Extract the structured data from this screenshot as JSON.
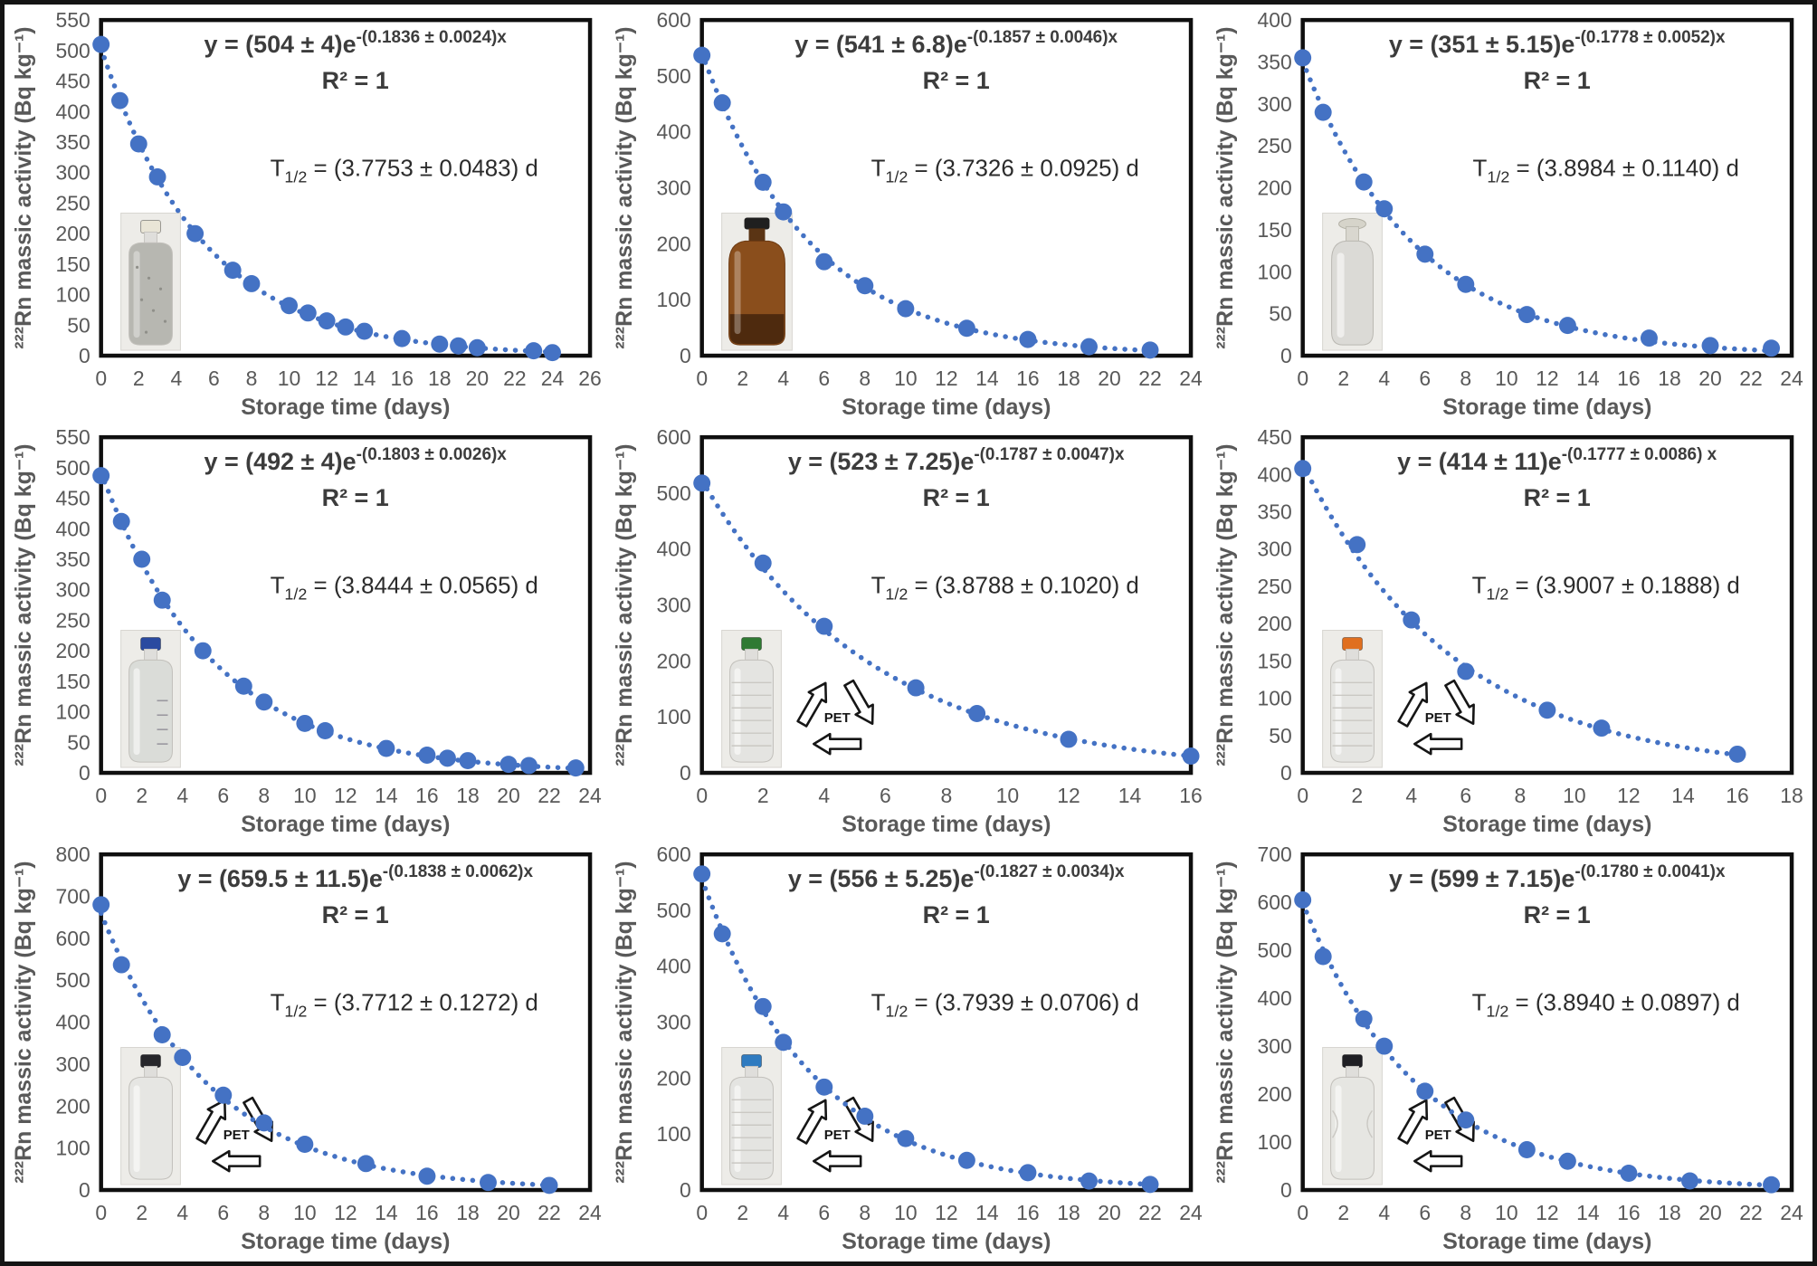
{
  "colors": {
    "accent_blue": "#4472C4",
    "axis_text_gray": "#595959",
    "annotation_text": "#3c3c3c",
    "plot_border": "#0f0f0f",
    "figure_border": "#141414"
  },
  "chart_data": [
    {
      "type": "scatter",
      "equation_prefix": "y = (504 ± 4)e",
      "equation_exponent": "-(0.1836 ± 0.0024)x",
      "r_squared": "R² = 1",
      "t_half_prefix": "T",
      "t_half_sub": "1/2",
      "t_half_value": " = (3.7753 ± 0.0483) d",
      "fit": {
        "amplitude": 504,
        "decay_rate": 0.1836
      },
      "x": [
        0,
        1,
        2,
        3,
        5,
        7,
        8,
        10,
        11,
        12,
        13,
        14,
        16,
        18,
        19,
        20,
        23,
        24
      ],
      "y": [
        510,
        418,
        347,
        293,
        200,
        140,
        118,
        82,
        70,
        57,
        47,
        40,
        28,
        19,
        16,
        13,
        8,
        5
      ],
      "xlim": [
        0,
        26
      ],
      "xtick_step": 2,
      "ylim": [
        0,
        550
      ],
      "ytick_step": 50,
      "xlabel": "Storage time (days)",
      "ylabel": "²²²Rn massic activity (Bq kg⁻¹)",
      "container": {
        "kind": "aluminum",
        "cap_color": "#e9e5d6",
        "body_color": "#b7b7b1",
        "pet_symbol": false
      }
    },
    {
      "type": "scatter",
      "equation_prefix": "y = (541 ± 6.8)e",
      "equation_exponent": "-(0.1857 ± 0.0046)x",
      "r_squared": "R² = 1",
      "t_half_prefix": "T",
      "t_half_sub": "1/2",
      "t_half_value": " = (3.7326 ± 0.0925) d",
      "fit": {
        "amplitude": 541,
        "decay_rate": 0.1857
      },
      "x": [
        0,
        1,
        3,
        4,
        6,
        8,
        10,
        13,
        16,
        19,
        22
      ],
      "y": [
        537,
        452,
        310,
        257,
        168,
        125,
        84,
        49,
        29,
        16,
        10
      ],
      "xlim": [
        0,
        24
      ],
      "xtick_step": 2,
      "ylim": [
        0,
        600
      ],
      "ytick_step": 100,
      "xlabel": "Storage time (days)",
      "ylabel": "²²²Rn massic activity (Bq kg⁻¹)",
      "container": {
        "kind": "amber",
        "cap_color": "#1f1f1f",
        "body_color": "#8a4e1c",
        "pet_symbol": false
      }
    },
    {
      "type": "scatter",
      "equation_prefix": "y = (351 ± 5.15)e",
      "equation_exponent": "-(0.1778 ± 0.0052)x",
      "r_squared": "R² = 1",
      "t_half_prefix": "T",
      "t_half_sub": "1/2",
      "t_half_value": " = (3.8984 ± 0.1140) d",
      "fit": {
        "amplitude": 351,
        "decay_rate": 0.1778
      },
      "x": [
        0,
        1,
        3,
        4,
        6,
        8,
        11,
        13,
        17,
        20,
        23
      ],
      "y": [
        355,
        290,
        207,
        175,
        121,
        85,
        49,
        36,
        21,
        12,
        9
      ],
      "xlim": [
        0,
        24
      ],
      "xtick_step": 2,
      "ylim": [
        0,
        400
      ],
      "ytick_step": 50,
      "xlabel": "Storage time (days)",
      "ylabel": "²²²Rn massic activity (Bq kg⁻¹)",
      "container": {
        "kind": "stopper",
        "cap_color": "#d6d4ca",
        "body_color": "#dbdad6",
        "pet_symbol": false
      }
    },
    {
      "type": "scatter",
      "equation_prefix": "y = (492 ± 4)e",
      "equation_exponent": "-(0.1803 ± 0.0026)x",
      "r_squared": "R² = 1",
      "t_half_prefix": "T",
      "t_half_sub": "1/2",
      "t_half_value": " = (3.8444 ± 0.0565) d",
      "fit": {
        "amplitude": 492,
        "decay_rate": 0.1803
      },
      "x": [
        0,
        1,
        2,
        3,
        5,
        7,
        8,
        10,
        11,
        14,
        16,
        17,
        18,
        20,
        21,
        23.3
      ],
      "y": [
        487,
        412,
        350,
        283,
        200,
        142,
        116,
        81,
        69,
        40,
        29,
        24,
        20,
        14,
        12,
        8
      ],
      "xlim": [
        0,
        24
      ],
      "xtick_step": 2,
      "ylim": [
        0,
        550
      ],
      "ytick_step": 50,
      "xlabel": "Storage time (days)",
      "ylabel": "²²²Rn massic activity (Bq kg⁻¹)",
      "container": {
        "kind": "lab",
        "cap_color": "#2a4aa0",
        "body_color": "#dadcd8",
        "pet_symbol": false
      }
    },
    {
      "type": "scatter",
      "equation_prefix": "y = (523 ± 7.25)e",
      "equation_exponent": "-(0.1787 ± 0.0047)x",
      "r_squared": "R² = 1",
      "t_half_prefix": "T",
      "t_half_sub": "1/2",
      "t_half_value": " = (3.8788 ± 0.1020) d",
      "fit": {
        "amplitude": 523,
        "decay_rate": 0.1787
      },
      "x": [
        0,
        2,
        4,
        7,
        9,
        12,
        16
      ],
      "y": [
        518,
        375,
        262,
        152,
        106,
        60,
        30
      ],
      "xlim": [
        0,
        16
      ],
      "xtick_step": 2,
      "ylim": [
        0,
        600
      ],
      "ytick_step": 100,
      "xlabel": "Storage time (days)",
      "ylabel": "²²²Rn massic activity (Bq kg⁻¹)",
      "container": {
        "kind": "pet",
        "cap_color": "#2f7a33",
        "body_color": "#e4e4e1",
        "pet_symbol": true,
        "pet_label": "PET"
      }
    },
    {
      "type": "scatter",
      "equation_prefix": "y = (414 ± 11)e",
      "equation_exponent": "-(0.1777 ± 0.0086) x",
      "r_squared": "R² = 1",
      "t_half_prefix": "T",
      "t_half_sub": "1/2",
      "t_half_value": " = (3.9007 ± 0.1888) d",
      "fit": {
        "amplitude": 414,
        "decay_rate": 0.1777
      },
      "x": [
        0,
        2,
        4,
        6,
        9,
        11,
        16
      ],
      "y": [
        408,
        306,
        205,
        136,
        84,
        60,
        25
      ],
      "xlim": [
        0,
        18
      ],
      "xtick_step": 2,
      "ylim": [
        0,
        450
      ],
      "ytick_step": 50,
      "xlabel": "Storage time (days)",
      "ylabel": "²²²Rn massic activity (Bq kg⁻¹)",
      "container": {
        "kind": "pet",
        "cap_color": "#e06f1f",
        "body_color": "#e5e5e2",
        "pet_symbol": true,
        "pet_label": "PET"
      }
    },
    {
      "type": "scatter",
      "equation_prefix": "y = (659.5 ± 11.5)e",
      "equation_exponent": "-(0.1838 ± 0.0062)x",
      "r_squared": "R² = 1",
      "t_half_prefix": "T",
      "t_half_sub": "1/2",
      "t_half_value": " = (3.7712 ± 0.1272) d",
      "fit": {
        "amplitude": 659.5,
        "decay_rate": 0.1838
      },
      "x": [
        0,
        1,
        3,
        4,
        6,
        8,
        10,
        13,
        16,
        19,
        22
      ],
      "y": [
        680,
        537,
        370,
        316,
        226,
        160,
        109,
        63,
        33,
        18,
        11
      ],
      "xlim": [
        0,
        24
      ],
      "xtick_step": 2,
      "ylim": [
        0,
        800
      ],
      "ytick_step": 100,
      "xlabel": "Storage time (days)",
      "ylabel": "²²²Rn massic activity (Bq kg⁻¹)",
      "container": {
        "kind": "pet-straight",
        "cap_color": "#26262b",
        "body_color": "#e6e6e3",
        "pet_symbol": true,
        "pet_label": "PET"
      }
    },
    {
      "type": "scatter",
      "equation_prefix": "y = (556 ± 5.25)e",
      "equation_exponent": "-(0.1827 ± 0.0034)x",
      "r_squared": "R² = 1",
      "t_half_prefix": "T",
      "t_half_sub": "1/2",
      "t_half_value": " = (3.7939 ± 0.0706) d",
      "fit": {
        "amplitude": 556,
        "decay_rate": 0.1827
      },
      "x": [
        0,
        1,
        3,
        4,
        6,
        8,
        10,
        13,
        16,
        19,
        22
      ],
      "y": [
        565,
        458,
        328,
        264,
        184,
        132,
        92,
        53,
        31,
        16,
        10
      ],
      "xlim": [
        0,
        24
      ],
      "xtick_step": 2,
      "ylim": [
        0,
        600
      ],
      "ytick_step": 100,
      "xlabel": "Storage time (days)",
      "ylabel": "²²²Rn massic activity (Bq kg⁻¹)",
      "container": {
        "kind": "pet-ribbed",
        "cap_color": "#2f7bc0",
        "body_color": "#e4e4e1",
        "pet_symbol": true,
        "pet_label": "PET"
      }
    },
    {
      "type": "scatter",
      "equation_prefix": "y = (599 ± 7.15)e",
      "equation_exponent": "-(0.1780 ± 0.0041)x",
      "r_squared": "R² = 1",
      "t_half_prefix": "T",
      "t_half_sub": "1/2",
      "t_half_value": " = (3.8940 ± 0.0897) d",
      "fit": {
        "amplitude": 599,
        "decay_rate": 0.178
      },
      "x": [
        0,
        1,
        3,
        4,
        6,
        8,
        11,
        13,
        16,
        19,
        23
      ],
      "y": [
        605,
        487,
        357,
        300,
        206,
        146,
        84,
        60,
        35,
        19,
        11
      ],
      "xlim": [
        0,
        24
      ],
      "xtick_step": 2,
      "ylim": [
        0,
        700
      ],
      "ytick_step": 100,
      "xlabel": "Storage time (days)",
      "ylabel": "²²²Rn massic activity (Bq kg⁻¹)",
      "container": {
        "kind": "pet-contour",
        "cap_color": "#1f1f24",
        "body_color": "#e6e6e2",
        "pet_symbol": true,
        "pet_label": "PET"
      }
    }
  ]
}
